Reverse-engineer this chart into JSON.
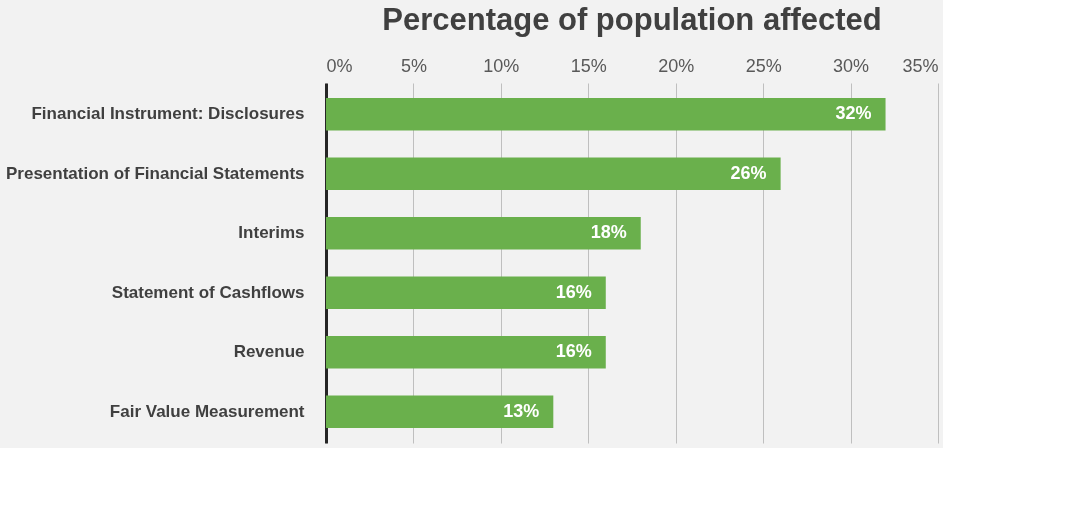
{
  "chart_data": {
    "type": "bar",
    "orientation": "horizontal",
    "title": "Percentage of population  affected",
    "categories": [
      "Financial Instrument: Disclosures",
      "Presentation of Financial Statements",
      "Interims",
      "Statement of Cashflows",
      "Revenue",
      "Fair Value Measurement"
    ],
    "values": [
      32,
      26,
      18,
      16,
      16,
      13
    ],
    "value_labels": [
      "32%",
      "26%",
      "18%",
      "16%",
      "16%",
      "13%"
    ],
    "color": "#6ab04c",
    "xlim": [
      0,
      35
    ],
    "xticks": [
      {
        "value": 0,
        "label": "0%"
      },
      {
        "value": 5,
        "label": "5%"
      },
      {
        "value": 10,
        "label": "10%"
      },
      {
        "value": 15,
        "label": "15%"
      },
      {
        "value": 20,
        "label": "20%"
      },
      {
        "value": 25,
        "label": "25%"
      },
      {
        "value": 30,
        "label": "30%"
      },
      {
        "value": 35,
        "label": "35%"
      }
    ],
    "grid": "x"
  }
}
